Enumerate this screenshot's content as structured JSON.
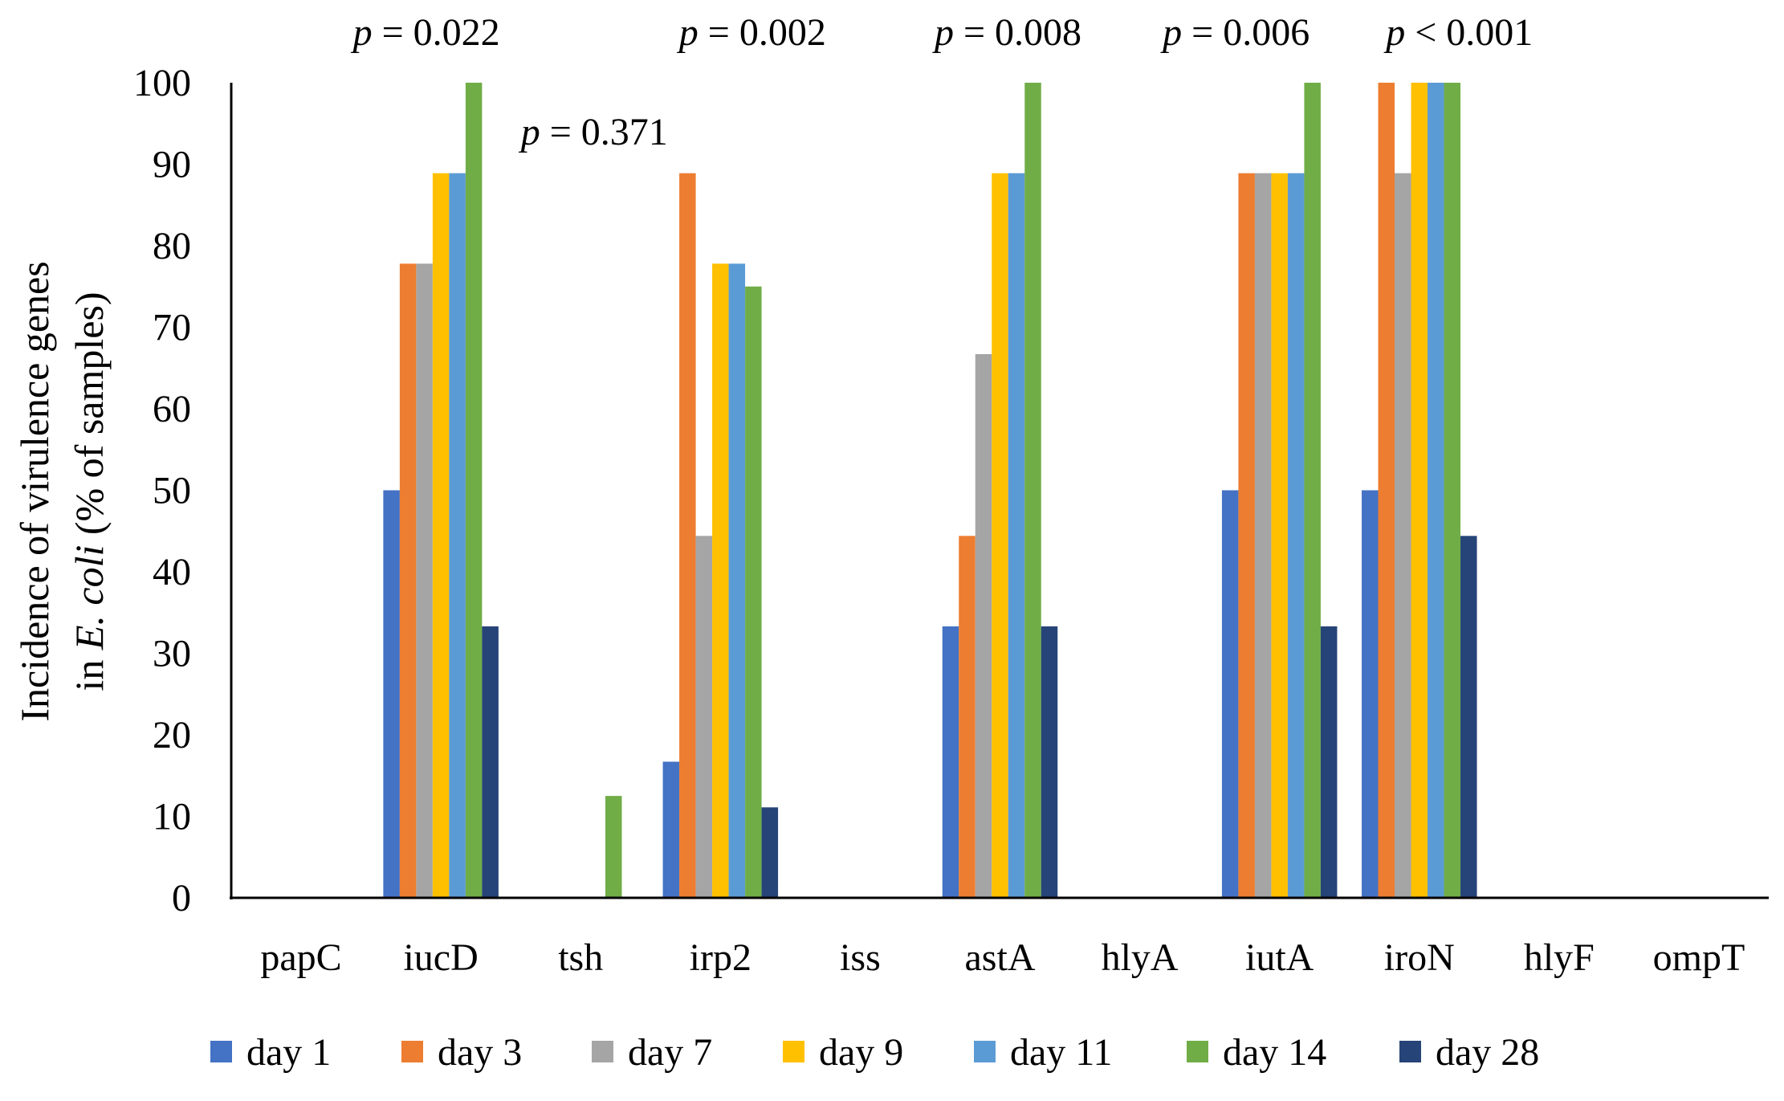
{
  "chart_data": {
    "type": "bar",
    "title": "",
    "xlabel": "",
    "ylabel": {
      "line1": "Incidence of virulence genes",
      "line2_prefix": "in ",
      "line2_italic": "E. coli",
      "line2_suffix": " (% of samples)"
    },
    "ylim": [
      0,
      100
    ],
    "yticks": [
      0,
      10,
      20,
      30,
      40,
      50,
      60,
      70,
      80,
      90,
      100
    ],
    "grid": false,
    "legend_position": "bottom",
    "categories": [
      "papC",
      "iucD",
      "tsh",
      "irp2",
      "iss",
      "astA",
      "hlyA",
      "iutA",
      "iroN",
      "hlyF",
      "ompT"
    ],
    "series": [
      {
        "name": "day 1",
        "color": "#4472C4",
        "values": [
          0,
          50,
          0,
          16.7,
          0,
          33.3,
          0,
          50,
          50,
          0,
          0
        ]
      },
      {
        "name": "day 3",
        "color": "#ED7D31",
        "values": [
          0,
          77.8,
          0,
          88.9,
          0,
          44.4,
          0,
          88.9,
          100,
          0,
          0
        ]
      },
      {
        "name": "day 7",
        "color": "#A5A5A5",
        "values": [
          0,
          77.8,
          0,
          44.4,
          0,
          66.7,
          0,
          88.9,
          88.9,
          0,
          0
        ]
      },
      {
        "name": "day 9",
        "color": "#FFC000",
        "values": [
          0,
          88.9,
          0,
          77.8,
          0,
          88.9,
          0,
          88.9,
          100,
          0,
          0
        ]
      },
      {
        "name": "day 11",
        "color": "#5B9BD5",
        "values": [
          0,
          88.9,
          0,
          77.8,
          0,
          88.9,
          0,
          88.9,
          100,
          0,
          0
        ]
      },
      {
        "name": "day 14",
        "color": "#70AD47",
        "values": [
          0,
          100,
          12.5,
          75,
          0,
          100,
          0,
          100,
          100,
          0,
          0
        ]
      },
      {
        "name": "day 28",
        "color": "#264478",
        "values": [
          0,
          33.3,
          0,
          11.1,
          0,
          33.3,
          0,
          33.3,
          44.4,
          0,
          0
        ]
      }
    ],
    "annotations": [
      {
        "category": "iucD",
        "p": "p",
        "rest": " = 0.022"
      },
      {
        "category": "tsh",
        "p": "p",
        "rest": " = 0.371"
      },
      {
        "category": "irp2",
        "p": "p",
        "rest": " = 0.002"
      },
      {
        "category": "astA",
        "p": "p",
        "rest": " = 0.008"
      },
      {
        "category": "iutA",
        "p": "p",
        "rest": " = 0.006"
      },
      {
        "category": "iroN",
        "p": "p",
        "rest": " < 0.001"
      }
    ]
  }
}
